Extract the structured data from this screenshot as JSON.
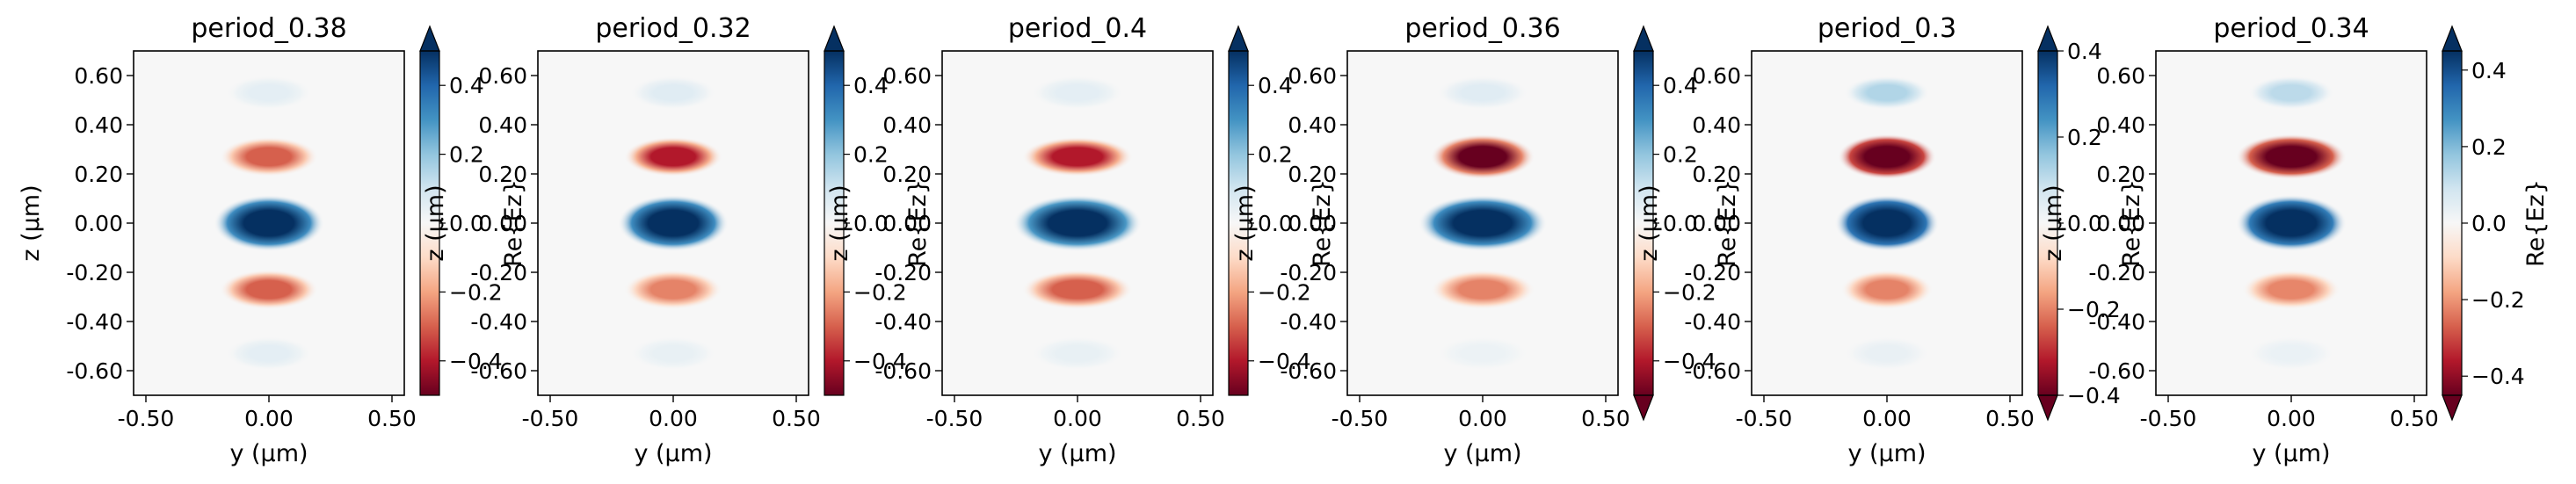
{
  "figure": {
    "panel_titles": [
      "period_0.38",
      "period_0.32",
      "period_0.4",
      "period_0.36",
      "period_0.3",
      "period_0.34"
    ],
    "xlabel": "y (μm)",
    "ylabel": "z (μm)",
    "colorbar_label": "Re{Ez}"
  },
  "chart_data": [
    {
      "type": "heatmap",
      "title": "period_0.38",
      "xlabel": "y (μm)",
      "ylabel": "z (μm)",
      "xlim": [
        -0.55,
        0.55
      ],
      "ylim": [
        -0.7,
        0.7
      ],
      "xticks": [
        "-0.50",
        "0.00",
        "0.50"
      ],
      "yticks": [
        "0.60",
        "0.40",
        "0.20",
        "0.00",
        "-0.20",
        "-0.40",
        "-0.60"
      ],
      "colorbar": {
        "label": "Re{Ez}",
        "colormap": "RdBu",
        "range": [
          -0.5,
          0.5
        ],
        "ticks": [
          "0.4",
          "0.2",
          "0.0",
          "−0.2",
          "−0.4"
        ],
        "extend": "max"
      },
      "lobes": [
        {
          "z": 0.0,
          "value": 0.7,
          "width": 0.18,
          "height": 0.1
        },
        {
          "z": 0.27,
          "value": -0.3,
          "width": 0.16,
          "height": 0.07
        },
        {
          "z": -0.27,
          "value": -0.3,
          "width": 0.16,
          "height": 0.07
        },
        {
          "z": 0.53,
          "value": 0.05,
          "width": 0.14,
          "height": 0.06
        },
        {
          "z": -0.53,
          "value": 0.05,
          "width": 0.14,
          "height": 0.06
        }
      ]
    },
    {
      "type": "heatmap",
      "title": "period_0.32",
      "xlabel": "y (μm)",
      "ylabel": "z (μm)",
      "xlim": [
        -0.55,
        0.55
      ],
      "ylim": [
        -0.7,
        0.7
      ],
      "xticks": [
        "-0.50",
        "0.00",
        "0.50"
      ],
      "yticks": [
        "0.60",
        "0.40",
        "0.20",
        "0.00",
        "-0.20",
        "-0.40",
        "-0.60"
      ],
      "colorbar": {
        "label": "Re{Ez}",
        "colormap": "RdBu",
        "range": [
          -0.5,
          0.5
        ],
        "ticks": [
          "0.4",
          "0.2",
          "0.0",
          "−0.2",
          "−0.4"
        ],
        "extend": "max"
      },
      "lobes": [
        {
          "z": 0.0,
          "value": 0.7,
          "width": 0.18,
          "height": 0.1
        },
        {
          "z": 0.27,
          "value": -0.4,
          "width": 0.16,
          "height": 0.07
        },
        {
          "z": -0.27,
          "value": -0.25,
          "width": 0.16,
          "height": 0.07
        },
        {
          "z": 0.53,
          "value": 0.06,
          "width": 0.14,
          "height": 0.06
        },
        {
          "z": -0.53,
          "value": 0.04,
          "width": 0.14,
          "height": 0.06
        }
      ]
    },
    {
      "type": "heatmap",
      "title": "period_0.4",
      "xlabel": "y (μm)",
      "ylabel": "z (μm)",
      "xlim": [
        -0.55,
        0.55
      ],
      "ylim": [
        -0.7,
        0.7
      ],
      "xticks": [
        "-0.50",
        "0.00",
        "0.50"
      ],
      "yticks": [
        "0.60",
        "0.40",
        "0.20",
        "0.00",
        "-0.20",
        "-0.40",
        "-0.60"
      ],
      "colorbar": {
        "label": "Re{Ez}",
        "colormap": "RdBu",
        "range": [
          -0.5,
          0.5
        ],
        "ticks": [
          "0.4",
          "0.2",
          "0.0",
          "−0.2",
          "−0.4"
        ],
        "extend": "max"
      },
      "lobes": [
        {
          "z": 0.0,
          "value": 0.65,
          "width": 0.21,
          "height": 0.1
        },
        {
          "z": 0.27,
          "value": -0.4,
          "width": 0.18,
          "height": 0.07
        },
        {
          "z": -0.27,
          "value": -0.3,
          "width": 0.18,
          "height": 0.07
        },
        {
          "z": 0.53,
          "value": 0.05,
          "width": 0.15,
          "height": 0.06
        },
        {
          "z": -0.53,
          "value": 0.04,
          "width": 0.15,
          "height": 0.06
        }
      ]
    },
    {
      "type": "heatmap",
      "title": "period_0.36",
      "xlabel": "y (μm)",
      "ylabel": "z (μm)",
      "xlim": [
        -0.55,
        0.55
      ],
      "ylim": [
        -0.7,
        0.7
      ],
      "xticks": [
        "-0.50",
        "0.00",
        "0.50"
      ],
      "yticks": [
        "0.60",
        "0.40",
        "0.20",
        "0.00",
        "-0.20",
        "-0.40",
        "-0.60"
      ],
      "colorbar": {
        "label": "Re{Ez}",
        "colormap": "RdBu",
        "range": [
          -0.5,
          0.5
        ],
        "ticks": [
          "0.4",
          "0.2",
          "0.0",
          "−0.2",
          "−0.4"
        ],
        "extend": "both"
      },
      "lobes": [
        {
          "z": 0.0,
          "value": 0.7,
          "width": 0.21,
          "height": 0.1
        },
        {
          "z": 0.27,
          "value": -0.55,
          "width": 0.17,
          "height": 0.08
        },
        {
          "z": -0.27,
          "value": -0.25,
          "width": 0.17,
          "height": 0.07
        },
        {
          "z": 0.53,
          "value": 0.06,
          "width": 0.15,
          "height": 0.06
        },
        {
          "z": -0.53,
          "value": 0.03,
          "width": 0.15,
          "height": 0.06
        }
      ]
    },
    {
      "type": "heatmap",
      "title": "period_0.3",
      "xlabel": "y (μm)",
      "ylabel": "z (μm)",
      "xlim": [
        -0.55,
        0.55
      ],
      "ylim": [
        -0.7,
        0.7
      ],
      "xticks": [
        "-0.50",
        "0.00",
        "0.50"
      ],
      "yticks": [
        "0.60",
        "0.40",
        "0.20",
        "0.00",
        "-0.20",
        "-0.40",
        "-0.60"
      ],
      "colorbar": {
        "label": "Re{Ez}",
        "colormap": "RdBu",
        "range": [
          -0.4,
          0.4
        ],
        "ticks": [
          "0.4",
          "0.2",
          "0.0",
          "−0.2",
          "−0.4"
        ],
        "extend": "both"
      },
      "lobes": [
        {
          "z": 0.0,
          "value": 0.65,
          "width": 0.17,
          "height": 0.1
        },
        {
          "z": 0.27,
          "value": -0.6,
          "width": 0.16,
          "height": 0.08
        },
        {
          "z": -0.27,
          "value": -0.2,
          "width": 0.15,
          "height": 0.07
        },
        {
          "z": 0.53,
          "value": 0.12,
          "width": 0.14,
          "height": 0.06
        },
        {
          "z": -0.53,
          "value": 0.03,
          "width": 0.14,
          "height": 0.06
        }
      ]
    },
    {
      "type": "heatmap",
      "title": "period_0.34",
      "xlabel": "y (μm)",
      "ylabel": "z (μm)",
      "xlim": [
        -0.55,
        0.55
      ],
      "ylim": [
        -0.7,
        0.7
      ],
      "xticks": [
        "-0.50",
        "0.00",
        "0.50"
      ],
      "yticks": [
        "0.60",
        "0.40",
        "0.20",
        "0.00",
        "-0.20",
        "-0.40",
        "-0.60"
      ],
      "colorbar": {
        "label": "Re{Ez}",
        "colormap": "RdBu",
        "range": [
          -0.45,
          0.45
        ],
        "ticks": [
          "0.4",
          "0.2",
          "0.0",
          "−0.2",
          "−0.4"
        ],
        "extend": "both"
      },
      "lobes": [
        {
          "z": 0.0,
          "value": 0.7,
          "width": 0.18,
          "height": 0.1
        },
        {
          "z": 0.27,
          "value": -0.6,
          "width": 0.18,
          "height": 0.08
        },
        {
          "z": -0.27,
          "value": -0.22,
          "width": 0.16,
          "height": 0.07
        },
        {
          "z": 0.53,
          "value": 0.12,
          "width": 0.14,
          "height": 0.06
        },
        {
          "z": -0.53,
          "value": 0.03,
          "width": 0.14,
          "height": 0.06
        }
      ]
    }
  ]
}
